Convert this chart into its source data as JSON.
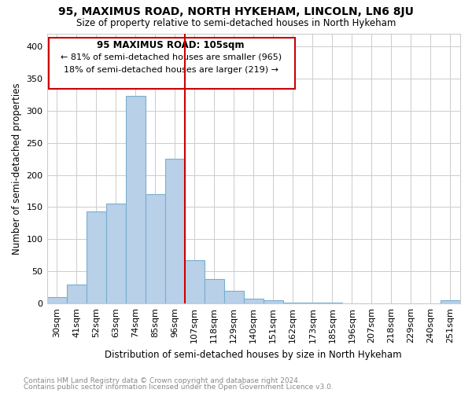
{
  "title": "95, MAXIMUS ROAD, NORTH HYKEHAM, LINCOLN, LN6 8JU",
  "subtitle": "Size of property relative to semi-detached houses in North Hykeham",
  "xlabel": "Distribution of semi-detached houses by size in North Hykeham",
  "ylabel": "Number of semi-detached properties",
  "footnote1": "Contains HM Land Registry data © Crown copyright and database right 2024.",
  "footnote2": "Contains public sector information licensed under the Open Government Licence v3.0.",
  "annotation_title": "95 MAXIMUS ROAD: 105sqm",
  "annotation_line1": "← 81% of semi-detached houses are smaller (965)",
  "annotation_line2": "18% of semi-detached houses are larger (219) →",
  "categories": [
    "30sqm",
    "41sqm",
    "52sqm",
    "63sqm",
    "74sqm",
    "85sqm",
    "96sqm",
    "107sqm",
    "118sqm",
    "129sqm",
    "140sqm",
    "151sqm",
    "162sqm",
    "173sqm",
    "185sqm",
    "196sqm",
    "207sqm",
    "218sqm",
    "229sqm",
    "240sqm",
    "251sqm"
  ],
  "values": [
    10,
    30,
    143,
    155,
    323,
    170,
    225,
    68,
    38,
    20,
    7,
    5,
    2,
    1,
    1,
    0,
    0,
    0,
    0,
    0,
    5
  ],
  "bar_color": "#b8d0e8",
  "bar_edgecolor": "#7aaed0",
  "vline_color": "#cc0000",
  "annotation_box_edgecolor": "#cc0000",
  "grid_color": "#cccccc",
  "ylim": [
    0,
    420
  ],
  "yticks": [
    0,
    50,
    100,
    150,
    200,
    250,
    300,
    350,
    400
  ],
  "vline_index": 7
}
